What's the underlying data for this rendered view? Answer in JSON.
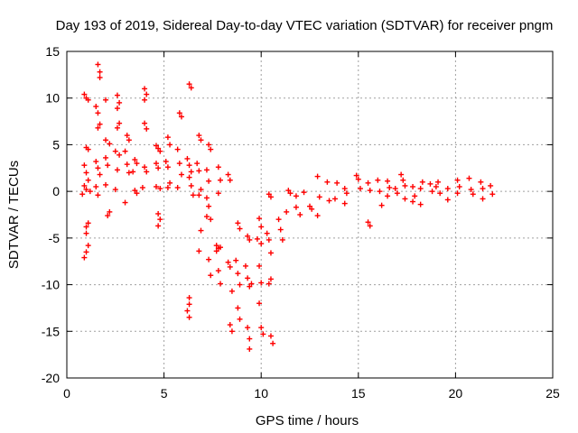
{
  "chart_data": {
    "type": "scatter",
    "title": "Day 193 of 2019, Sidereal Day-to-day VTEC variation (SDTVAR) for receiver pngm",
    "xlabel": "GPS time / hours",
    "ylabel": "SDTVAR / TECUs",
    "xlim": [
      0,
      25
    ],
    "ylim": [
      -20,
      15
    ],
    "xticks": [
      0,
      5,
      10,
      15,
      20,
      25
    ],
    "yticks": [
      -20,
      -15,
      -10,
      -5,
      0,
      5,
      10,
      15
    ],
    "grid": true,
    "marker": "+",
    "color": "#ff0000",
    "series": [
      {
        "name": "SDTVAR",
        "points": [
          [
            0.9,
            10.4
          ],
          [
            1.0,
            10.0
          ],
          [
            1.1,
            9.8
          ],
          [
            1.0,
            4.7
          ],
          [
            1.1,
            4.5
          ],
          [
            0.9,
            2.8
          ],
          [
            1.0,
            2.0
          ],
          [
            1.1,
            1.2
          ],
          [
            0.9,
            0.6
          ],
          [
            1.0,
            0.2
          ],
          [
            1.2,
            0.0
          ],
          [
            0.8,
            -0.3
          ],
          [
            1.1,
            -3.4
          ],
          [
            1.0,
            -3.8
          ],
          [
            1.0,
            -4.5
          ],
          [
            1.1,
            -5.8
          ],
          [
            1.0,
            -6.5
          ],
          [
            0.9,
            -7.1
          ],
          [
            1.6,
            13.6
          ],
          [
            1.7,
            12.8
          ],
          [
            1.7,
            12.2
          ],
          [
            1.5,
            9.1
          ],
          [
            1.6,
            8.4
          ],
          [
            1.7,
            7.2
          ],
          [
            1.6,
            6.8
          ],
          [
            1.5,
            3.2
          ],
          [
            1.6,
            2.5
          ],
          [
            1.7,
            1.8
          ],
          [
            1.5,
            0.5
          ],
          [
            1.6,
            -0.4
          ],
          [
            2.0,
            9.8
          ],
          [
            2.0,
            5.5
          ],
          [
            2.2,
            5.1
          ],
          [
            2.0,
            3.6
          ],
          [
            2.1,
            2.8
          ],
          [
            2.0,
            0.7
          ],
          [
            2.2,
            -2.2
          ],
          [
            2.1,
            -2.6
          ],
          [
            2.6,
            10.3
          ],
          [
            2.7,
            9.5
          ],
          [
            2.6,
            8.9
          ],
          [
            2.7,
            7.3
          ],
          [
            2.6,
            6.8
          ],
          [
            2.5,
            4.3
          ],
          [
            2.7,
            3.9
          ],
          [
            2.6,
            2.3
          ],
          [
            2.5,
            0.2
          ],
          [
            3.1,
            6.0
          ],
          [
            3.2,
            5.5
          ],
          [
            3.0,
            4.3
          ],
          [
            3.1,
            2.9
          ],
          [
            3.2,
            2.0
          ],
          [
            3.0,
            -1.2
          ],
          [
            3.5,
            3.4
          ],
          [
            3.6,
            3.0
          ],
          [
            3.4,
            2.1
          ],
          [
            3.5,
            0.1
          ],
          [
            3.6,
            -0.2
          ],
          [
            4.0,
            11.0
          ],
          [
            4.1,
            10.4
          ],
          [
            4.0,
            9.8
          ],
          [
            4.0,
            7.3
          ],
          [
            4.1,
            6.7
          ],
          [
            4.0,
            2.6
          ],
          [
            4.1,
            2.1
          ],
          [
            3.9,
            0.4
          ],
          [
            4.6,
            4.9
          ],
          [
            4.7,
            4.6
          ],
          [
            4.8,
            4.3
          ],
          [
            4.6,
            3.0
          ],
          [
            4.7,
            2.5
          ],
          [
            4.6,
            0.5
          ],
          [
            4.8,
            0.3
          ],
          [
            4.7,
            -2.4
          ],
          [
            4.8,
            -3.0
          ],
          [
            4.7,
            -3.7
          ],
          [
            5.2,
            5.8
          ],
          [
            5.3,
            5.0
          ],
          [
            5.1,
            3.2
          ],
          [
            5.2,
            2.6
          ],
          [
            5.3,
            0.9
          ],
          [
            5.2,
            0.4
          ],
          [
            5.8,
            8.4
          ],
          [
            5.9,
            8.0
          ],
          [
            5.7,
            4.5
          ],
          [
            5.8,
            3.0
          ],
          [
            5.9,
            1.8
          ],
          [
            5.7,
            0.4
          ],
          [
            6.3,
            11.5
          ],
          [
            6.4,
            11.1
          ],
          [
            6.2,
            3.5
          ],
          [
            6.3,
            2.8
          ],
          [
            6.4,
            2.1
          ],
          [
            6.3,
            1.5
          ],
          [
            6.4,
            0.6
          ],
          [
            6.5,
            -0.4
          ],
          [
            6.3,
            -11.4
          ],
          [
            6.3,
            -12.1
          ],
          [
            6.2,
            -12.8
          ],
          [
            6.3,
            -13.5
          ],
          [
            6.8,
            6.0
          ],
          [
            6.9,
            5.5
          ],
          [
            6.7,
            3.0
          ],
          [
            6.8,
            2.2
          ],
          [
            6.9,
            0.2
          ],
          [
            6.8,
            -0.4
          ],
          [
            6.9,
            -4.2
          ],
          [
            6.8,
            -6.4
          ],
          [
            7.3,
            5.0
          ],
          [
            7.4,
            4.5
          ],
          [
            7.2,
            2.3
          ],
          [
            7.3,
            1.1
          ],
          [
            7.2,
            -0.7
          ],
          [
            7.3,
            -1.6
          ],
          [
            7.2,
            -2.7
          ],
          [
            7.4,
            -3.0
          ],
          [
            7.3,
            -7.3
          ],
          [
            7.4,
            -9.0
          ],
          [
            7.7,
            -5.8
          ],
          [
            7.8,
            -6.1
          ],
          [
            7.7,
            -6.4
          ],
          [
            7.9,
            -6.0
          ],
          [
            7.8,
            -8.5
          ],
          [
            7.9,
            -9.9
          ],
          [
            7.8,
            2.6
          ],
          [
            7.9,
            1.2
          ],
          [
            7.8,
            -0.2
          ],
          [
            8.3,
            1.8
          ],
          [
            8.4,
            1.2
          ],
          [
            8.3,
            -7.6
          ],
          [
            8.4,
            -8.1
          ],
          [
            8.5,
            -10.7
          ],
          [
            8.4,
            -14.3
          ],
          [
            8.5,
            -15.0
          ],
          [
            8.8,
            -3.4
          ],
          [
            8.9,
            -4.0
          ],
          [
            8.7,
            -7.4
          ],
          [
            8.8,
            -8.8
          ],
          [
            8.9,
            -10.0
          ],
          [
            8.8,
            -12.5
          ],
          [
            8.9,
            -13.7
          ],
          [
            9.3,
            -4.8
          ],
          [
            9.4,
            -5.2
          ],
          [
            9.2,
            -8.0
          ],
          [
            9.3,
            -9.3
          ],
          [
            9.5,
            -9.9
          ],
          [
            9.4,
            -10.2
          ],
          [
            9.3,
            -14.6
          ],
          [
            9.4,
            -15.8
          ],
          [
            9.4,
            -16.9
          ],
          [
            9.9,
            -2.9
          ],
          [
            10.0,
            -3.8
          ],
          [
            9.8,
            -5.1
          ],
          [
            10.0,
            -5.6
          ],
          [
            9.9,
            -8.0
          ],
          [
            10.0,
            -9.8
          ],
          [
            9.9,
            -12.0
          ],
          [
            10.0,
            -14.6
          ],
          [
            10.1,
            -15.3
          ],
          [
            10.4,
            -0.3
          ],
          [
            10.5,
            -0.6
          ],
          [
            10.3,
            -4.5
          ],
          [
            10.4,
            -5.2
          ],
          [
            10.5,
            -6.6
          ],
          [
            10.5,
            -9.4
          ],
          [
            10.4,
            -9.9
          ],
          [
            10.5,
            -15.5
          ],
          [
            10.6,
            -16.3
          ],
          [
            10.9,
            -3.0
          ],
          [
            11.0,
            -4.1
          ],
          [
            11.1,
            -5.2
          ],
          [
            11.3,
            -2.2
          ],
          [
            11.4,
            0.1
          ],
          [
            11.5,
            -0.2
          ],
          [
            11.8,
            -0.5
          ],
          [
            11.8,
            -1.7
          ],
          [
            12.0,
            -2.5
          ],
          [
            12.2,
            -0.1
          ],
          [
            12.5,
            -1.6
          ],
          [
            12.6,
            -1.9
          ],
          [
            12.9,
            1.6
          ],
          [
            13.0,
            -0.6
          ],
          [
            12.9,
            -2.6
          ],
          [
            13.4,
            1.0
          ],
          [
            13.5,
            -1.0
          ],
          [
            13.9,
            0.9
          ],
          [
            13.8,
            -0.8
          ],
          [
            14.3,
            0.3
          ],
          [
            14.4,
            -0.2
          ],
          [
            14.3,
            -1.3
          ],
          [
            14.9,
            1.7
          ],
          [
            15.0,
            1.3
          ],
          [
            15.1,
            0.3
          ],
          [
            15.5,
            0.9
          ],
          [
            15.6,
            0.1
          ],
          [
            15.5,
            -3.3
          ],
          [
            15.6,
            -3.7
          ],
          [
            16.0,
            1.2
          ],
          [
            16.1,
            0.0
          ],
          [
            16.2,
            -1.5
          ],
          [
            16.5,
            1.1
          ],
          [
            16.6,
            0.4
          ],
          [
            16.5,
            -0.5
          ],
          [
            16.9,
            0.3
          ],
          [
            17.0,
            -0.2
          ],
          [
            17.2,
            1.8
          ],
          [
            17.3,
            1.2
          ],
          [
            17.4,
            0.6
          ],
          [
            17.4,
            -0.8
          ],
          [
            17.8,
            0.5
          ],
          [
            17.9,
            -0.5
          ],
          [
            17.8,
            -1.1
          ],
          [
            18.2,
            0.3
          ],
          [
            18.3,
            1.0
          ],
          [
            18.2,
            -1.4
          ],
          [
            18.7,
            0.8
          ],
          [
            18.8,
            0.0
          ],
          [
            19.0,
            0.5
          ],
          [
            19.1,
            1.0
          ],
          [
            19.2,
            -0.2
          ],
          [
            19.6,
            0.3
          ],
          [
            19.6,
            -0.9
          ],
          [
            20.1,
            1.2
          ],
          [
            20.2,
            0.5
          ],
          [
            20.1,
            -0.2
          ],
          [
            20.7,
            1.4
          ],
          [
            20.8,
            0.2
          ],
          [
            20.9,
            -0.3
          ],
          [
            21.3,
            1.0
          ],
          [
            21.4,
            0.3
          ],
          [
            21.4,
            -0.8
          ],
          [
            21.8,
            0.6
          ],
          [
            21.9,
            -0.3
          ]
        ]
      }
    ]
  }
}
